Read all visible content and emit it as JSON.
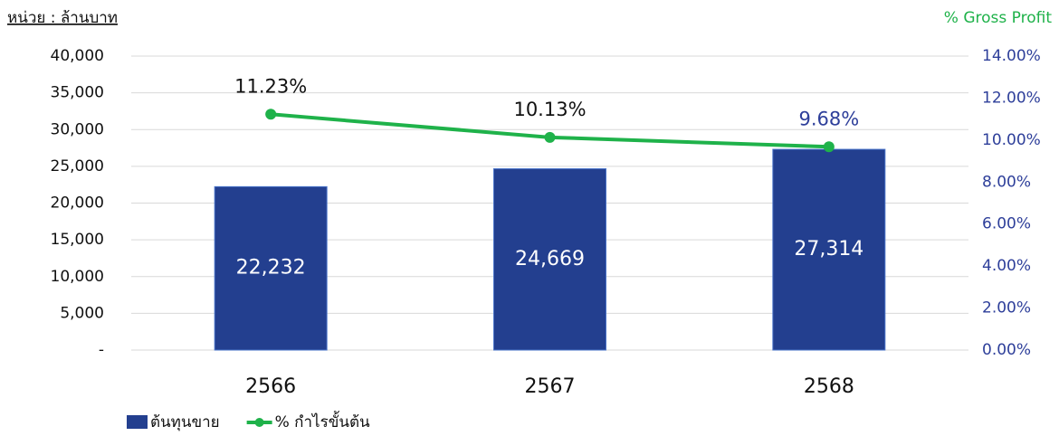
{
  "chart_data": {
    "type": "bar",
    "unit_label": "หน่วย : ล้านบาท",
    "y2_title": "% Gross Profit",
    "categories": [
      "2566",
      "2567",
      "2568"
    ],
    "series": [
      {
        "name": "ต้นทุนขาย",
        "type": "bar",
        "color": "#233f8f",
        "values": [
          22232,
          24669,
          27314
        ],
        "value_labels": [
          "22,232",
          "24,669",
          "27,314"
        ],
        "label_color": "#ffffff"
      },
      {
        "name": "% กำไรขั้นต้น",
        "type": "line",
        "axis": "y2",
        "color": "#1fb24a",
        "values": [
          11.23,
          10.13,
          9.68
        ],
        "value_labels": [
          "11.23%",
          "10.13%",
          "9.68%"
        ],
        "value_label_colors": [
          "#111111",
          "#111111",
          "#2e3f9a"
        ]
      }
    ],
    "ylim": [
      0,
      40000
    ],
    "yticks": [
      {
        "value": 0,
        "label": "-"
      },
      {
        "value": 5000,
        "label": "5,000"
      },
      {
        "value": 10000,
        "label": "10,000"
      },
      {
        "value": 15000,
        "label": "15,000"
      },
      {
        "value": 20000,
        "label": "20,000"
      },
      {
        "value": 25000,
        "label": "25,000"
      },
      {
        "value": 30000,
        "label": "30,000"
      },
      {
        "value": 35000,
        "label": "35,000"
      },
      {
        "value": 40000,
        "label": "40,000"
      }
    ],
    "y2lim": [
      0,
      14
    ],
    "y2ticks": [
      {
        "value": 0,
        "label": "0.00%"
      },
      {
        "value": 2,
        "label": "2.00%"
      },
      {
        "value": 4,
        "label": "4.00%"
      },
      {
        "value": 6,
        "label": "6.00%"
      },
      {
        "value": 8,
        "label": "8.00%"
      },
      {
        "value": 10,
        "label": "10.00%"
      },
      {
        "value": 12,
        "label": "12.00%"
      },
      {
        "value": 14,
        "label": "14.00%"
      }
    ],
    "y2_color": "#2e3f9a",
    "grid": true,
    "legend": "bottom-left"
  }
}
